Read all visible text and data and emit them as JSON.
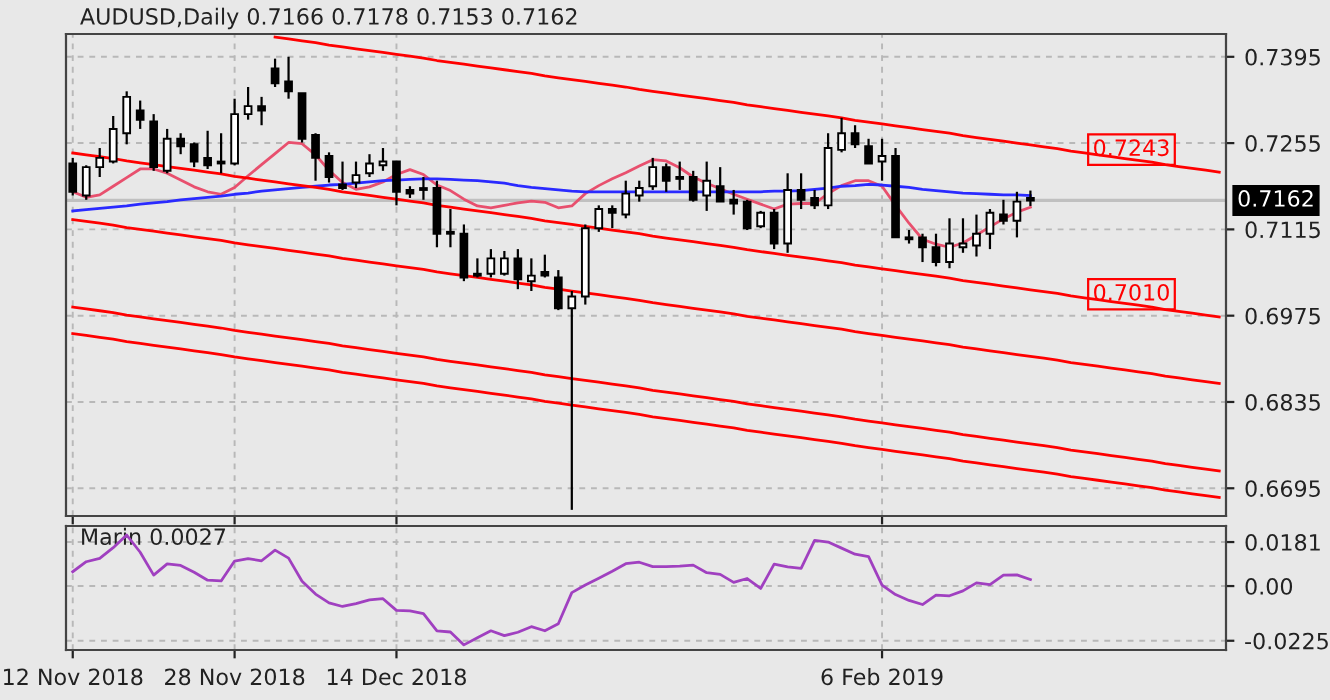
{
  "chart_data": [
    {
      "type": "candlestick",
      "title": "AUDUSD,Daily 0.7166 0.7178 0.7153 0.7162",
      "categories": [
        "12 Nov 2018",
        null,
        null,
        null,
        null,
        null,
        null,
        null,
        null,
        null,
        null,
        null,
        "28 Nov 2018",
        null,
        null,
        null,
        null,
        null,
        null,
        null,
        null,
        null,
        null,
        null,
        "14 Dec 2018",
        null,
        null,
        null,
        null,
        null,
        null,
        null,
        null,
        null,
        null,
        null,
        null,
        null,
        null,
        null,
        null,
        null,
        null,
        null,
        null,
        null,
        null,
        null,
        null,
        null,
        null,
        null,
        null,
        null,
        null,
        null,
        null,
        null,
        null,
        null,
        "6 Feb 2019",
        null,
        null,
        null,
        null,
        null,
        null,
        null,
        null,
        null,
        null,
        null,
        null,
        null,
        null,
        null,
        null,
        null,
        null,
        null,
        null,
        null,
        null,
        null,
        null,
        null
      ],
      "ohlc": [
        [
          0.7222,
          0.7231,
          0.717,
          0.7176
        ],
        [
          0.717,
          0.7219,
          0.7163,
          0.7216
        ],
        [
          0.7216,
          0.7247,
          0.72,
          0.7231
        ],
        [
          0.7225,
          0.7299,
          0.7222,
          0.7278
        ],
        [
          0.7271,
          0.7339,
          0.7253,
          0.733
        ],
        [
          0.7308,
          0.7324,
          0.7278,
          0.7293
        ],
        [
          0.729,
          0.7302,
          0.721,
          0.7216
        ],
        [
          0.721,
          0.7278,
          0.7206,
          0.7262
        ],
        [
          0.7262,
          0.7271,
          0.7237,
          0.725
        ],
        [
          0.7253,
          0.7256,
          0.7216,
          0.7225
        ],
        [
          0.7231,
          0.7275,
          0.7213,
          0.7219
        ],
        [
          0.7225,
          0.7271,
          0.7206,
          0.7222
        ],
        [
          0.7222,
          0.7327,
          0.7219,
          0.7302
        ],
        [
          0.7302,
          0.7346,
          0.7293,
          0.7315
        ],
        [
          0.7315,
          0.733,
          0.7284,
          0.7308
        ],
        [
          0.7376,
          0.7392,
          0.7346,
          0.7352
        ],
        [
          0.7355,
          0.7395,
          0.7327,
          0.7339
        ],
        [
          0.7336,
          0.7336,
          0.7256,
          0.7262
        ],
        [
          0.7268,
          0.7271,
          0.7194,
          0.7231
        ],
        [
          0.7234,
          0.724,
          0.7191,
          0.72
        ],
        [
          0.7188,
          0.7225,
          0.7179,
          0.7182
        ],
        [
          0.7191,
          0.7225,
          0.7182,
          0.7203
        ],
        [
          0.7206,
          0.7237,
          0.72,
          0.7222
        ],
        [
          0.7219,
          0.7247,
          0.721,
          0.7225
        ],
        [
          0.7225,
          0.7225,
          0.7154,
          0.7176
        ],
        [
          0.7179,
          0.7185,
          0.7166,
          0.7173
        ],
        [
          0.7179,
          0.72,
          0.7163,
          0.7182
        ],
        [
          0.7182,
          0.7194,
          0.7086,
          0.7108
        ],
        [
          0.7111,
          0.7148,
          0.7086,
          0.7108
        ],
        [
          0.7108,
          0.7123,
          0.7031,
          0.7037
        ],
        [
          0.704,
          0.7068,
          0.7037,
          0.7043
        ],
        [
          0.7043,
          0.7083,
          0.7037,
          0.7068
        ],
        [
          0.7043,
          0.708,
          0.704,
          0.7068
        ],
        [
          0.7068,
          0.7083,
          0.7018,
          0.7034
        ],
        [
          0.7031,
          0.7068,
          0.7015,
          0.704
        ],
        [
          0.7046,
          0.7074,
          0.7037,
          0.704
        ],
        [
          0.7037,
          0.7049,
          0.6984,
          0.6987
        ],
        [
          0.6987,
          0.7015,
          0.666,
          0.7006
        ],
        [
          0.7006,
          0.7123,
          0.6993,
          0.7117
        ],
        [
          0.7117,
          0.7154,
          0.7111,
          0.7148
        ],
        [
          0.7148,
          0.7154,
          0.7117,
          0.7142
        ],
        [
          0.7139,
          0.7194,
          0.7133,
          0.7173
        ],
        [
          0.717,
          0.7194,
          0.716,
          0.7182
        ],
        [
          0.7185,
          0.7231,
          0.7179,
          0.7216
        ],
        [
          0.7216,
          0.7222,
          0.7176,
          0.7194
        ],
        [
          0.72,
          0.7225,
          0.7179,
          0.7197
        ],
        [
          0.72,
          0.721,
          0.716,
          0.7163
        ],
        [
          0.717,
          0.7225,
          0.7145,
          0.7194
        ],
        [
          0.7185,
          0.7216,
          0.716,
          0.716
        ],
        [
          0.7163,
          0.7179,
          0.7139,
          0.7157
        ],
        [
          0.716,
          0.7163,
          0.7114,
          0.7117
        ],
        [
          0.712,
          0.7145,
          0.7117,
          0.7142
        ],
        [
          0.7142,
          0.7148,
          0.7083,
          0.7092
        ],
        [
          0.7092,
          0.7206,
          0.7077,
          0.7179
        ],
        [
          0.7179,
          0.7206,
          0.7148,
          0.7163
        ],
        [
          0.7166,
          0.7179,
          0.7148,
          0.7154
        ],
        [
          0.7154,
          0.7271,
          0.7148,
          0.7247
        ],
        [
          0.7244,
          0.7296,
          0.724,
          0.7271
        ],
        [
          0.7271,
          0.7284,
          0.7247,
          0.7253
        ],
        [
          0.725,
          0.7262,
          0.7222,
          0.7222
        ],
        [
          0.7225,
          0.7262,
          0.7194,
          0.7234
        ],
        [
          0.7234,
          0.7247,
          0.7102,
          0.7102
        ],
        [
          0.7102,
          0.7114,
          0.7092,
          0.7099
        ],
        [
          0.7102,
          0.7108,
          0.7062,
          0.7086
        ],
        [
          0.7086,
          0.7108,
          0.7055,
          0.7062
        ],
        [
          0.7062,
          0.7133,
          0.7052,
          0.7092
        ],
        [
          0.7086,
          0.7133,
          0.7077,
          0.7092
        ],
        [
          0.7089,
          0.7139,
          0.7071,
          0.7108
        ],
        [
          0.7108,
          0.7148,
          0.7083,
          0.7142
        ],
        [
          0.7139,
          0.7163,
          0.7123,
          0.7129
        ],
        [
          0.7129,
          0.7176,
          0.7102,
          0.716
        ],
        [
          0.7166,
          0.7178,
          0.7153,
          0.7162
        ],
        null,
        null,
        null,
        null,
        null,
        null,
        null,
        null,
        null,
        null,
        null,
        null,
        null,
        null
      ],
      "series": [
        {
          "type": "line",
          "color": "#e8506e",
          "values": [
            0.7176,
            0.7167,
            0.7171,
            0.7185,
            0.7199,
            0.7213,
            0.7213,
            0.7206,
            0.7195,
            0.7184,
            0.7176,
            0.7172,
            0.7183,
            0.7202,
            0.722,
            0.7238,
            0.7256,
            0.7254,
            0.7236,
            0.7211,
            0.7191,
            0.718,
            0.7184,
            0.7192,
            0.7204,
            0.7212,
            0.7204,
            0.7187,
            0.7178,
            0.7164,
            0.7153,
            0.715,
            0.7154,
            0.7158,
            0.7161,
            0.7159,
            0.715,
            0.7153,
            0.7173,
            0.7186,
            0.7197,
            0.7207,
            0.7218,
            0.7228,
            0.7226,
            0.7215,
            0.72,
            0.719,
            0.7181,
            0.7172,
            0.7164,
            0.7156,
            0.7148,
            0.7156,
            0.7157,
            0.7157,
            0.7173,
            0.7186,
            0.7194,
            0.7194,
            0.7185,
            0.7154,
            0.7125,
            0.7099,
            0.7091,
            0.7086,
            0.7093,
            0.7106,
            0.7119,
            0.7132,
            0.7143,
            0.7151,
            null,
            null,
            null,
            null,
            null,
            null,
            null,
            null,
            null,
            null,
            null,
            null,
            null,
            null
          ]
        },
        {
          "type": "line",
          "color": "#2a2aff",
          "values": [
            0.7145,
            0.7147,
            0.7149,
            0.7151,
            0.7153,
            0.7156,
            0.7158,
            0.716,
            0.7163,
            0.7165,
            0.7167,
            0.7169,
            0.7172,
            0.7174,
            0.7177,
            0.7179,
            0.7181,
            0.7183,
            0.7185,
            0.7187,
            0.7188,
            0.719,
            0.7192,
            0.7194,
            0.7195,
            0.7196,
            0.7197,
            0.7197,
            0.7196,
            0.7195,
            0.7194,
            0.7192,
            0.719,
            0.7186,
            0.7183,
            0.7181,
            0.7179,
            0.7177,
            0.7176,
            0.7176,
            0.7176,
            0.7176,
            0.7176,
            0.7176,
            0.7176,
            0.7176,
            0.7176,
            0.7176,
            0.7176,
            0.7176,
            0.7176,
            0.7176,
            0.7177,
            0.7177,
            0.7178,
            0.718,
            0.7182,
            0.7185,
            0.7186,
            0.7188,
            0.7187,
            0.7185,
            0.7183,
            0.718,
            0.7178,
            0.7176,
            0.7174,
            0.7173,
            0.7172,
            0.7171,
            0.7171,
            0.717,
            null,
            null,
            null,
            null,
            null,
            null,
            null,
            null,
            null,
            null,
            null,
            null,
            null,
            null
          ]
        },
        {
          "type": "line",
          "color": "#ff0000",
          "values": [
            null,
            null,
            null,
            null,
            null,
            null,
            null,
            null,
            null,
            null,
            null,
            null,
            null,
            null,
            null,
            0.7427,
            0.7424,
            0.7421,
            0.7418,
            0.7414,
            0.7411,
            0.7408,
            0.7405,
            0.7402,
            0.7399,
            0.7396,
            0.7393,
            0.7389,
            0.7386,
            0.7383,
            0.738,
            0.7377,
            0.7374,
            0.7371,
            0.7368,
            0.7364,
            0.7361,
            0.7358,
            0.7355,
            0.7352,
            0.7349,
            0.7346,
            0.7342,
            0.7339,
            0.7336,
            0.7333,
            0.733,
            0.7327,
            0.7324,
            0.7321,
            0.7317,
            0.7314,
            0.7311,
            0.7308,
            0.7305,
            0.7302,
            0.7299,
            0.7296,
            0.7292,
            0.7289,
            0.7286,
            0.7283,
            0.728,
            0.7277,
            0.7274,
            0.7271,
            0.7267,
            0.7264,
            0.7261,
            0.7258,
            0.7255,
            0.7252,
            0.7249,
            0.7246,
            0.7242,
            0.7239,
            0.7236,
            0.7233,
            0.723,
            0.7227,
            0.7224,
            0.722,
            0.7217,
            0.7214,
            0.7211,
            0.7208
          ]
        },
        {
          "type": "line",
          "color": "#ff0000",
          "values": [
            0.7239,
            0.7236,
            0.7233,
            0.723,
            0.7226,
            0.7223,
            0.722,
            0.7217,
            0.7214,
            0.7211,
            0.7208,
            0.7205,
            0.7201,
            0.7198,
            0.7195,
            0.7192,
            0.7189,
            0.7186,
            0.7183,
            0.718,
            0.7176,
            0.7173,
            0.717,
            0.7167,
            0.7164,
            0.7161,
            0.7158,
            0.7154,
            0.7151,
            0.7148,
            0.7145,
            0.7142,
            0.7139,
            0.7136,
            0.7133,
            0.7129,
            0.7126,
            0.7123,
            0.712,
            0.7117,
            0.7114,
            0.7111,
            0.7108,
            0.7104,
            0.7101,
            0.7098,
            0.7095,
            0.7092,
            0.7089,
            0.7086,
            0.7082,
            0.7079,
            0.7076,
            0.7073,
            0.707,
            0.7067,
            0.7064,
            0.7061,
            0.7057,
            0.7054,
            0.7051,
            0.7048,
            0.7045,
            0.7042,
            0.7039,
            0.7036,
            0.7032,
            0.7029,
            0.7026,
            0.7023,
            0.702,
            0.7017,
            0.7014,
            0.7011,
            0.7007,
            0.7004,
            0.7001,
            0.6998,
            0.6995,
            0.6992,
            0.6989,
            0.6985,
            0.6982,
            0.6979,
            0.6976,
            0.6973
          ]
        },
        {
          "type": "line",
          "color": "#ff0000",
          "values": [
            0.7131,
            0.7128,
            0.7125,
            0.7122,
            0.7118,
            0.7115,
            0.7112,
            0.7109,
            0.7106,
            0.7103,
            0.71,
            0.7097,
            0.7093,
            0.709,
            0.7087,
            0.7084,
            0.7081,
            0.7078,
            0.7075,
            0.7072,
            0.7068,
            0.7065,
            0.7062,
            0.7059,
            0.7056,
            0.7053,
            0.705,
            0.7046,
            0.7043,
            0.704,
            0.7037,
            0.7034,
            0.7031,
            0.7028,
            0.7025,
            0.7021,
            0.7018,
            0.7015,
            0.7012,
            0.7009,
            0.7006,
            0.7003,
            0.7,
            0.6996,
            0.6993,
            0.699,
            0.6987,
            0.6984,
            0.6981,
            0.6978,
            0.6974,
            0.6971,
            0.6968,
            0.6965,
            0.6962,
            0.6959,
            0.6956,
            0.6953,
            0.6949,
            0.6946,
            0.6943,
            0.694,
            0.6937,
            0.6934,
            0.6931,
            0.6928,
            0.6924,
            0.6921,
            0.6918,
            0.6915,
            0.6912,
            0.6909,
            0.6906,
            0.6903,
            0.6899,
            0.6896,
            0.6893,
            0.689,
            0.6887,
            0.6884,
            0.6881,
            0.6877,
            0.6874,
            0.6871,
            0.6868,
            0.6865
          ]
        },
        {
          "type": "line",
          "color": "#ff0000",
          "values": [
            0.6989,
            0.6986,
            0.6983,
            0.698,
            0.6976,
            0.6973,
            0.697,
            0.6967,
            0.6964,
            0.6961,
            0.6958,
            0.6955,
            0.6951,
            0.6948,
            0.6945,
            0.6942,
            0.6939,
            0.6936,
            0.6933,
            0.693,
            0.6926,
            0.6923,
            0.692,
            0.6917,
            0.6914,
            0.6911,
            0.6908,
            0.6904,
            0.6901,
            0.6898,
            0.6895,
            0.6892,
            0.6889,
            0.6886,
            0.6883,
            0.6879,
            0.6876,
            0.6873,
            0.687,
            0.6867,
            0.6864,
            0.6861,
            0.6858,
            0.6854,
            0.6851,
            0.6848,
            0.6845,
            0.6842,
            0.6839,
            0.6836,
            0.6832,
            0.6829,
            0.6826,
            0.6823,
            0.682,
            0.6817,
            0.6814,
            0.6811,
            0.6807,
            0.6804,
            0.6801,
            0.6798,
            0.6795,
            0.6792,
            0.6789,
            0.6786,
            0.6782,
            0.6779,
            0.6776,
            0.6773,
            0.677,
            0.6767,
            0.6764,
            0.6761,
            0.6757,
            0.6754,
            0.6751,
            0.6748,
            0.6745,
            0.6742,
            0.6739,
            0.6735,
            0.6732,
            0.6729,
            0.6726,
            0.6723
          ]
        },
        {
          "type": "line",
          "color": "#ff0000",
          "values": [
            0.6946,
            0.6943,
            0.694,
            0.6937,
            0.6933,
            0.693,
            0.6927,
            0.6924,
            0.6921,
            0.6918,
            0.6915,
            0.6912,
            0.6908,
            0.6905,
            0.6902,
            0.6899,
            0.6896,
            0.6893,
            0.689,
            0.6887,
            0.6883,
            0.688,
            0.6877,
            0.6874,
            0.6871,
            0.6868,
            0.6865,
            0.6861,
            0.6858,
            0.6855,
            0.6852,
            0.6849,
            0.6846,
            0.6843,
            0.684,
            0.6836,
            0.6833,
            0.683,
            0.6827,
            0.6824,
            0.6821,
            0.6818,
            0.6815,
            0.6811,
            0.6808,
            0.6805,
            0.6802,
            0.6799,
            0.6796,
            0.6793,
            0.6789,
            0.6786,
            0.6783,
            0.678,
            0.6777,
            0.6774,
            0.6771,
            0.6768,
            0.6764,
            0.6761,
            0.6758,
            0.6755,
            0.6752,
            0.6749,
            0.6746,
            0.6743,
            0.6739,
            0.6736,
            0.6733,
            0.673,
            0.6727,
            0.6724,
            0.6721,
            0.6718,
            0.6714,
            0.6711,
            0.6708,
            0.6705,
            0.6702,
            0.6699,
            0.6696,
            0.6692,
            0.6689,
            0.6686,
            0.6683,
            0.668
          ]
        }
      ],
      "ylim": [
        0.665,
        0.7432
      ],
      "yticks": [
        0.7395,
        0.7255,
        0.7115,
        0.6975,
        0.6835,
        0.6695
      ],
      "ref_lines": [
        {
          "axis": "y",
          "value": 0.7162,
          "label": "0.7162",
          "color": "#c0c0c0"
        }
      ],
      "annotations": [
        "0.7243",
        "0.7010"
      ],
      "grid": true,
      "tick_labels": "y"
    },
    {
      "type": "line",
      "title": "Marin 0.0027",
      "series": [
        {
          "color": "#a040c0",
          "values": [
            0.0059,
            0.01,
            0.0114,
            0.0158,
            0.021,
            0.0139,
            0.0045,
            0.0091,
            0.0085,
            0.0057,
            0.0024,
            0.0021,
            0.0103,
            0.0113,
            0.0104,
            0.0148,
            0.0115,
            0.002,
            -0.0033,
            -0.0069,
            -0.0084,
            -0.0072,
            -0.0057,
            -0.0052,
            -0.01,
            -0.0102,
            -0.0113,
            -0.0184,
            -0.0189,
            -0.0242,
            -0.0213,
            -0.0184,
            -0.0204,
            -0.019,
            -0.0167,
            -0.0184,
            -0.0155,
            -0.0027,
            0.0004,
            0.0032,
            0.0061,
            0.0092,
            0.0098,
            0.008,
            0.008,
            0.0082,
            0.0086,
            0.0055,
            0.0048,
            0.0015,
            0.0031,
            -0.001,
            0.009,
            0.0079,
            0.0073,
            0.0188,
            0.0181,
            0.0156,
            0.0131,
            0.0121,
            0.0004,
            -0.0035,
            -0.0059,
            -0.0076,
            -0.0037,
            -0.004,
            -0.002,
            0.0013,
            0.0006,
            0.0045,
            0.0046,
            0.0027,
            null,
            null,
            null,
            null,
            null,
            null,
            null,
            null,
            null,
            null,
            null,
            null,
            null,
            null
          ]
        }
      ],
      "ylim": [
        -0.0263,
        0.0247
      ],
      "yticks": [
        0.0181,
        {
          "value": 0,
          "label": "0.00"
        },
        {
          "value": -0.0225,
          "label": "-0.0225"
        }
      ],
      "grid": true
    }
  ]
}
